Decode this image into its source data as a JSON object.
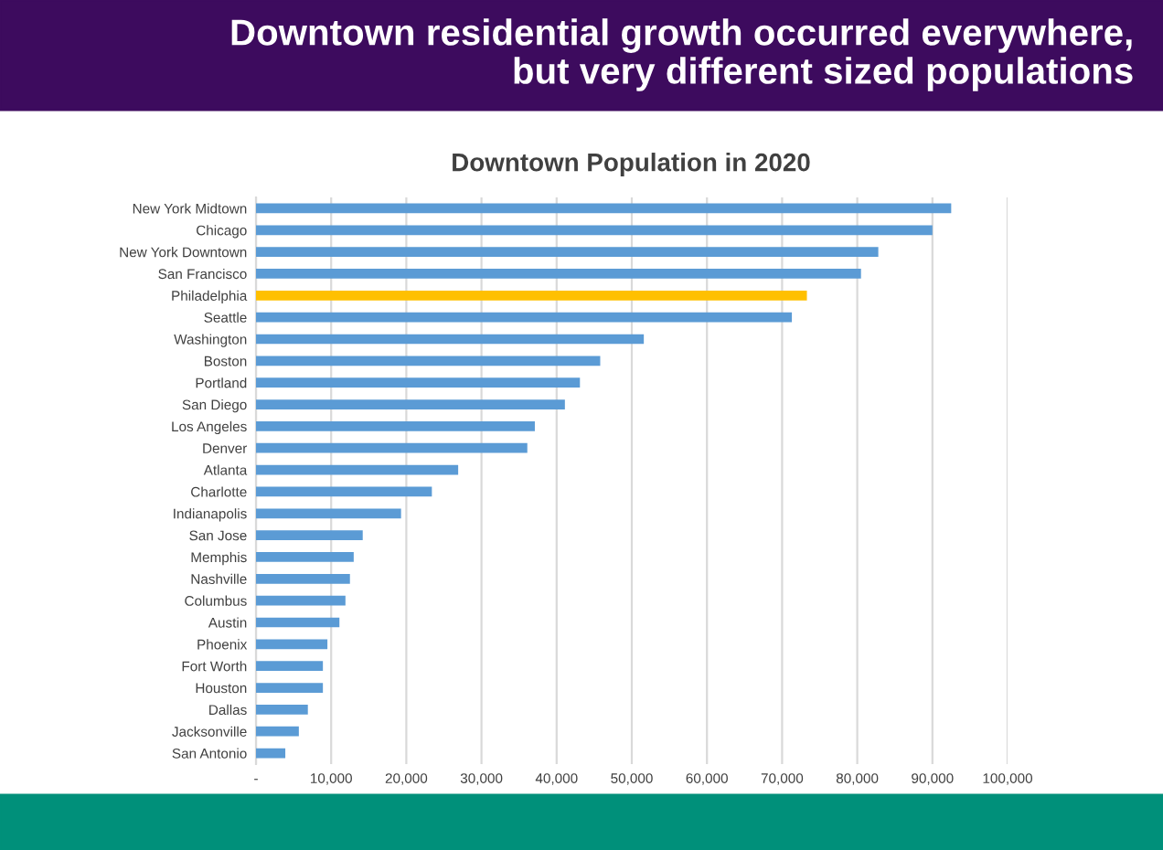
{
  "chart_data": {
    "type": "bar",
    "orientation": "horizontal",
    "title": "Downtown residential growth occurred everywhere,\nbut very different sized populations",
    "subtitle": "Downtown Population in 2020",
    "categories": [
      "New York Midtown",
      "Chicago",
      "New York Downtown",
      "San Francisco",
      "Philadelphia",
      "Seattle",
      "Washington",
      "Boston",
      "Portland",
      "San Diego",
      "Los Angeles",
      "Denver",
      "Atlanta",
      "Charlotte",
      "Indianapolis",
      "San Jose",
      "Memphis",
      "Nashville",
      "Columbus",
      "Austin",
      "Phoenix",
      "Fort Worth",
      "Houston",
      "Dallas",
      "Jacksonville",
      "San Antonio"
    ],
    "values": [
      92500,
      90000,
      82800,
      80500,
      73300,
      71300,
      51600,
      45800,
      43100,
      41100,
      37100,
      36100,
      26900,
      23400,
      19300,
      14200,
      13000,
      12500,
      11900,
      11100,
      9500,
      8900,
      8900,
      6900,
      5700,
      3900
    ],
    "colors": [
      "#5b9bd5",
      "#5b9bd5",
      "#5b9bd5",
      "#5b9bd5",
      "#ffc000",
      "#5b9bd5",
      "#5b9bd5",
      "#5b9bd5",
      "#5b9bd5",
      "#5b9bd5",
      "#5b9bd5",
      "#5b9bd5",
      "#5b9bd5",
      "#5b9bd5",
      "#5b9bd5",
      "#5b9bd5",
      "#5b9bd5",
      "#5b9bd5",
      "#5b9bd5",
      "#5b9bd5",
      "#5b9bd5",
      "#5b9bd5",
      "#5b9bd5",
      "#5b9bd5",
      "#5b9bd5",
      "#5b9bd5"
    ],
    "xlim": [
      0,
      100000
    ],
    "xticks": [
      {
        "value": 0,
        "label": "-"
      },
      {
        "value": 10000,
        "label": "10,000"
      },
      {
        "value": 20000,
        "label": "20,000"
      },
      {
        "value": 30000,
        "label": "30,000"
      },
      {
        "value": 40000,
        "label": "40,000"
      },
      {
        "value": 50000,
        "label": "50,000"
      },
      {
        "value": 60000,
        "label": "60,000"
      },
      {
        "value": 70000,
        "label": "70,000"
      },
      {
        "value": 80000,
        "label": "80,000"
      },
      {
        "value": 90000,
        "label": "90,000"
      },
      {
        "value": 100000,
        "label": "100,000"
      }
    ],
    "grid": "x",
    "legend": false
  }
}
